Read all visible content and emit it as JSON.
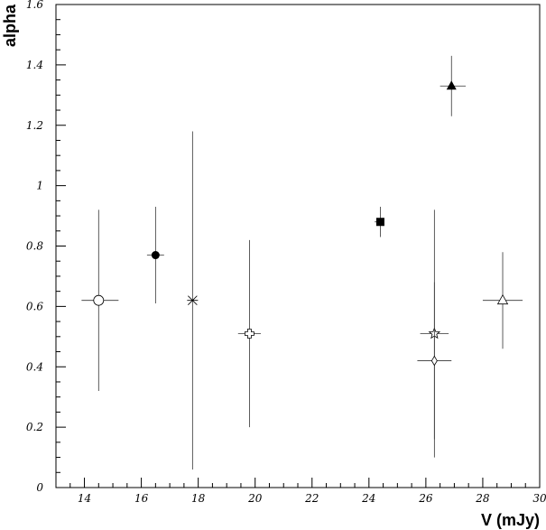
{
  "chart_data": {
    "type": "scatter",
    "title": "",
    "xlabel": "V (mJy)",
    "ylabel": "alpha",
    "xlim": [
      13,
      30
    ],
    "ylim": [
      0,
      1.6
    ],
    "x_ticks": [
      14,
      16,
      18,
      20,
      22,
      24,
      26,
      28,
      30
    ],
    "x_tick_labels": [
      "14",
      "16",
      "18",
      "20",
      "22",
      "24",
      "26",
      "28",
      "30"
    ],
    "y_ticks": [
      0,
      0.2,
      0.4,
      0.6,
      0.8,
      1.0,
      1.2,
      1.4,
      1.6
    ],
    "y_tick_labels": [
      "0",
      "0.2",
      "0.4",
      "0.6",
      "0.8",
      "1",
      "1.2",
      "1.4",
      "1.6"
    ],
    "grid": false,
    "legend": "none",
    "points": [
      {
        "marker": "open-circle",
        "x": 14.5,
        "y": 0.62,
        "x_low": 13.9,
        "x_high": 15.2,
        "y_low": 0.32,
        "y_high": 0.92
      },
      {
        "marker": "filled-circle",
        "x": 16.5,
        "y": 0.77,
        "x_low": 16.2,
        "x_high": 16.8,
        "y_low": 0.61,
        "y_high": 0.93
      },
      {
        "marker": "asterisk",
        "x": 17.8,
        "y": 0.62,
        "x_low": 17.8,
        "x_high": 17.8,
        "y_low": 0.06,
        "y_high": 1.18
      },
      {
        "marker": "open-cross",
        "x": 19.8,
        "y": 0.51,
        "x_low": 19.4,
        "x_high": 20.2,
        "y_low": 0.2,
        "y_high": 0.82
      },
      {
        "marker": "filled-square",
        "x": 24.4,
        "y": 0.88,
        "x_low": 24.2,
        "x_high": 24.5,
        "y_low": 0.83,
        "y_high": 0.93
      },
      {
        "marker": "filled-triangle",
        "x": 26.9,
        "y": 1.33,
        "x_low": 26.5,
        "x_high": 27.4,
        "y_low": 1.23,
        "y_high": 1.43
      },
      {
        "marker": "open-star",
        "x": 26.3,
        "y": 0.51,
        "x_low": 25.8,
        "x_high": 26.8,
        "y_low": 0.1,
        "y_high": 0.92
      },
      {
        "marker": "open-diamond",
        "x": 26.3,
        "y": 0.42,
        "x_low": 25.7,
        "x_high": 26.9,
        "y_low": 0.16,
        "y_high": 0.68
      },
      {
        "marker": "open-triangle",
        "x": 28.7,
        "y": 0.62,
        "x_low": 28.0,
        "x_high": 29.4,
        "y_low": 0.46,
        "y_high": 0.78
      }
    ]
  }
}
